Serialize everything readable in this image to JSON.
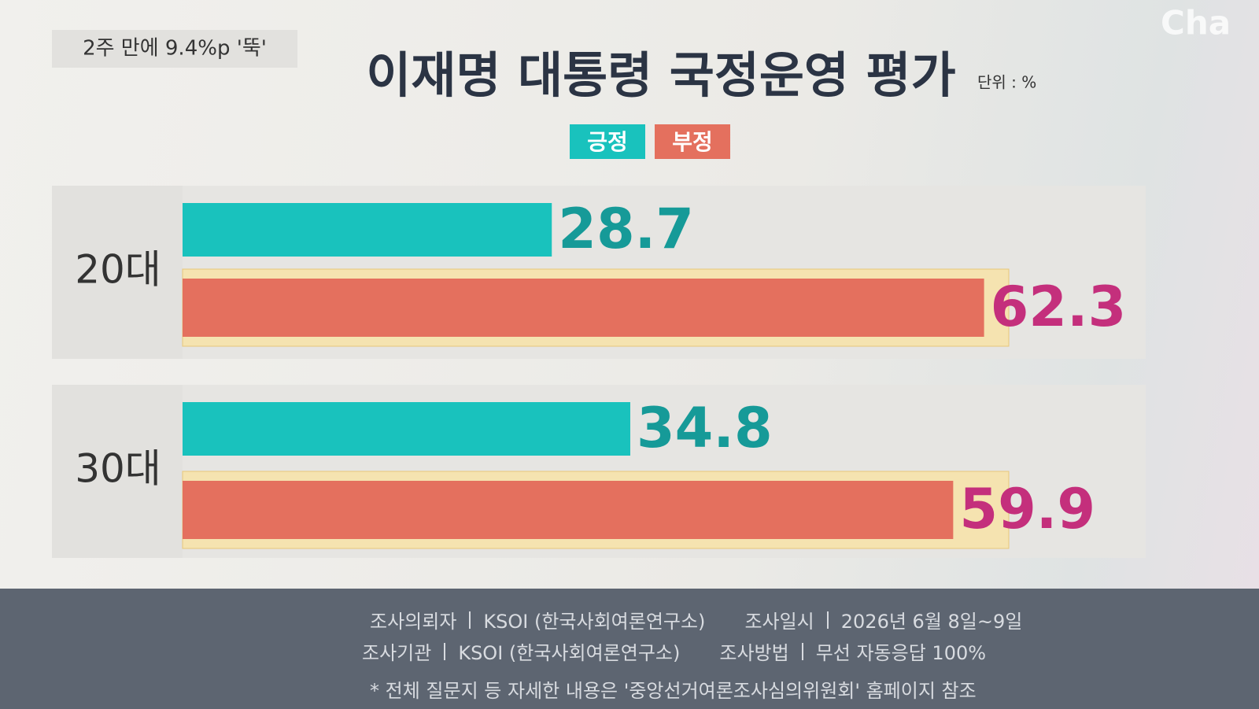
{
  "tag": "2주 만에 9.4%p '뚝'",
  "logo": "Cha",
  "chart_data": {
    "type": "hbar",
    "title": "이재명 대통령 국정운영 평가",
    "unit": "단위 : %",
    "categories": [
      "20대",
      "30대"
    ],
    "series": [
      {
        "name": "긍정",
        "color": "#19c2bd",
        "label_color": "#169a98",
        "values": [
          28.7,
          34.8
        ]
      },
      {
        "name": "부정",
        "color": "#e4705e",
        "label_color": "#c42f7c",
        "values": [
          62.3,
          59.9
        ]
      }
    ]
  },
  "footer": {
    "rows": [
      [
        {
          "key": "조사의뢰자",
          "value": "KSOI (한국사회여론연구소)"
        },
        {
          "key": "조사일시",
          "value": "2026년 6월 8일~9일"
        }
      ],
      [
        {
          "key": "조사기관",
          "value": "KSOI (한국사회여론연구소)"
        },
        {
          "key": "조사방법",
          "value": "무선 자동응답 100%"
        }
      ]
    ],
    "note": "* 전체 질문지 등 자세한 내용은 '중앙선거여론조사심의위원회' 홈페이지 참조"
  }
}
